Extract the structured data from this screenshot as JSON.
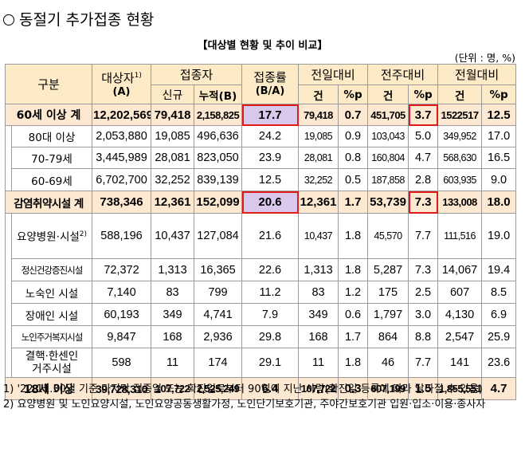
{
  "title": "동절기 추가접종 현황",
  "subtitle": "【대상별 현황 및 추이 비교】",
  "unit": "(단위 : 명, %)",
  "header": {
    "group": "구분",
    "target": "대상자",
    "target_sup": "1)",
    "target_sub": "(A)",
    "vacc": "접종자",
    "new": "신규",
    "cum": "누적(B)",
    "rate": "접종률",
    "rate_sub": "(B/A)",
    "prev_day": "전일대비",
    "prev_week": "전주대비",
    "prev_month": "전월대비",
    "cnt": "건",
    "pp": "%p"
  },
  "rows": [
    {
      "label": "60세 이상 계",
      "cells": [
        "12,202,569",
        "79,418",
        "2,158,825",
        "17.7",
        "79,418",
        "0.7",
        "451,705",
        "3.7",
        "1522517",
        "12.5"
      ]
    },
    {
      "label": "80대 이상",
      "cells": [
        "2,053,880",
        "19,085",
        "496,636",
        "24.2",
        "19,085",
        "0.9",
        "103,043",
        "5.0",
        "349,952",
        "17.0"
      ]
    },
    {
      "label": "70-79세",
      "cells": [
        "3,445,989",
        "28,081",
        "823,050",
        "23.9",
        "28,081",
        "0.8",
        "160,804",
        "4.7",
        "568,630",
        "16.5"
      ]
    },
    {
      "label": "60-69세",
      "cells": [
        "6,702,700",
        "32,252",
        "839,139",
        "12.5",
        "32,252",
        "0.5",
        "187,858",
        "2.8",
        "603,935",
        "9.0"
      ]
    },
    {
      "label": "감염취약시설 계",
      "cells": [
        "738,346",
        "12,361",
        "152,099",
        "20.6",
        "12,361",
        "1.7",
        "53,739",
        "7.3",
        "133,008",
        "18.0"
      ]
    },
    {
      "label": "요양병원·시설",
      "label_sup": "2)",
      "cells": [
        "588,196",
        "10,437",
        "127,084",
        "21.6",
        "10,437",
        "1.8",
        "45,570",
        "7.7",
        "111,516",
        "19.0"
      ]
    },
    {
      "label": "정신건강증진시설",
      "cells": [
        "72,372",
        "1,313",
        "16,365",
        "22.6",
        "1,313",
        "1.8",
        "5,287",
        "7.3",
        "14,067",
        "19.4"
      ]
    },
    {
      "label": "노숙인 시설",
      "cells": [
        "7,140",
        "83",
        "799",
        "11.2",
        "83",
        "1.2",
        "175",
        "2.5",
        "607",
        "8.5"
      ]
    },
    {
      "label": "장애인 시설",
      "cells": [
        "60,193",
        "349",
        "4,741",
        "7.9",
        "349",
        "0.6",
        "1,797",
        "3.0",
        "4,130",
        "6.9"
      ]
    },
    {
      "label": "노인주거복지시설",
      "cells": [
        "9,847",
        "168",
        "2,936",
        "29.8",
        "168",
        "1.7",
        "864",
        "8.8",
        "2,547",
        "25.9"
      ]
    },
    {
      "label": "결핵·한센인 거주시설",
      "cells": [
        "598",
        "11",
        "174",
        "29.1",
        "11",
        "1.8",
        "46",
        "7.7",
        "141",
        "23.6"
      ]
    },
    {
      "label": "18세 이상",
      "cells": [
        "39,728,310",
        "107,722",
        "2,525,249",
        "6.4",
        "107,722",
        "0.3",
        "607,199",
        "1.5",
        "1,855,551",
        "4.7"
      ]
    }
  ],
  "notes": [
    "1) '22.11.30일 기준 마지막 접종일 또는 확진일로부터 90일이 지난 사람(확진일 등록에 따라 달라질 수 있음)",
    "2) 요양병원 및 노인요양시설, 노인요양공동생활가정, 노인단기보호기관, 주야간보호기관 입원·입소·이용·종사자"
  ]
}
